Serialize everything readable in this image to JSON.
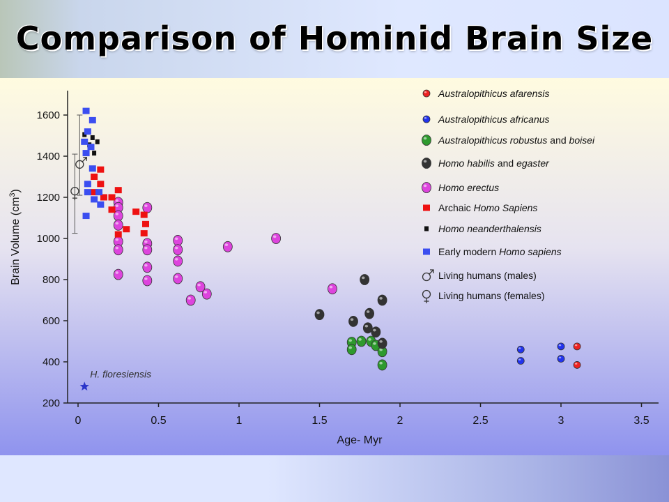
{
  "slide": {
    "title": "Comparison of Hominid Brain Size",
    "slide_number": ""
  },
  "chart_data": {
    "type": "scatter",
    "title": "Comparison of Hominid Brain Size",
    "xlabel": "Age- Myr",
    "ylabel": "Brain Volume (cm3)",
    "ylabel_parts": {
      "main": "Brain Volume (cm",
      "sup": "3",
      "close": ")"
    },
    "xlim": [
      0,
      3.5
    ],
    "ylim": [
      200,
      1700
    ],
    "x_axis_reversed": false,
    "x_ticks": [
      {
        "value": 0,
        "label": "0"
      },
      {
        "value": 0.5,
        "label": "0.5"
      },
      {
        "value": 1,
        "label": "1"
      },
      {
        "value": 1.5,
        "label": "1.5"
      },
      {
        "value": 2,
        "label": "2"
      },
      {
        "value": 2.5,
        "label": "2.5"
      },
      {
        "value": 3,
        "label": "3"
      },
      {
        "value": 3.5,
        "label": "3.5"
      }
    ],
    "y_ticks": [
      {
        "value": 200,
        "label": "200"
      },
      {
        "value": 400,
        "label": "400"
      },
      {
        "value": 600,
        "label": "600"
      },
      {
        "value": 800,
        "label": "800"
      },
      {
        "value": 1000,
        "label": "1000"
      },
      {
        "value": 1200,
        "label": "1200"
      },
      {
        "value": 1400,
        "label": "1400"
      },
      {
        "value": 1600,
        "label": "1600"
      }
    ],
    "grid": false,
    "legend_position": "top-right",
    "series": [
      {
        "name": "Australopithicus afarensis",
        "legend_parts": [
          {
            "text": "Australopithicus afarensis",
            "italic": true
          }
        ],
        "marker": "circle-small",
        "color": "#ee2222",
        "points": [
          [
            3.1,
            475
          ],
          [
            3.1,
            385
          ]
        ]
      },
      {
        "name": "Australopithicus africanus",
        "legend_parts": [
          {
            "text": "Australopithicus africanus",
            "italic": true
          }
        ],
        "marker": "circle-small",
        "color": "#2233ee",
        "points": [
          [
            2.75,
            460
          ],
          [
            2.75,
            405
          ],
          [
            3.0,
            475
          ],
          [
            3.0,
            415
          ]
        ]
      },
      {
        "name": "Australopithicus robustus and boisei",
        "legend_parts": [
          {
            "text": "Australopithicus robustus",
            "italic": true
          },
          {
            "text": " and ",
            "italic": false
          },
          {
            "text": "boisei",
            "italic": true
          }
        ],
        "marker": "circle",
        "color": "#2e9a2e",
        "points": [
          [
            1.7,
            495
          ],
          [
            1.7,
            460
          ],
          [
            1.76,
            500
          ],
          [
            1.82,
            500
          ],
          [
            1.85,
            480
          ],
          [
            1.89,
            450
          ],
          [
            1.89,
            385
          ]
        ]
      },
      {
        "name": "Homo habilis and egaster",
        "legend_parts": [
          {
            "text": "Homo habilis",
            "italic": true
          },
          {
            "text": " and ",
            "italic": false
          },
          {
            "text": "egaster",
            "italic": true
          }
        ],
        "marker": "circle",
        "color": "#333333",
        "points": [
          [
            1.5,
            630
          ],
          [
            1.71,
            597
          ],
          [
            1.78,
            800
          ],
          [
            1.8,
            565
          ],
          [
            1.81,
            635
          ],
          [
            1.85,
            545
          ],
          [
            1.89,
            700
          ],
          [
            1.89,
            490
          ]
        ]
      },
      {
        "name": "Homo erectus",
        "legend_parts": [
          {
            "text": "Homo erectus",
            "italic": true
          }
        ],
        "marker": "circle",
        "color": "#dd44dd",
        "points": [
          [
            0.25,
            1175
          ],
          [
            0.25,
            1150
          ],
          [
            0.25,
            1110
          ],
          [
            0.25,
            1065
          ],
          [
            0.25,
            985
          ],
          [
            0.25,
            945
          ],
          [
            0.25,
            825
          ],
          [
            0.43,
            1150
          ],
          [
            0.43,
            975
          ],
          [
            0.43,
            945
          ],
          [
            0.43,
            860
          ],
          [
            0.43,
            795
          ],
          [
            0.62,
            990
          ],
          [
            0.62,
            945
          ],
          [
            0.62,
            890
          ],
          [
            0.62,
            805
          ],
          [
            0.7,
            700
          ],
          [
            0.76,
            765
          ],
          [
            0.8,
            730
          ],
          [
            0.93,
            960
          ],
          [
            1.23,
            1000
          ],
          [
            1.58,
            755
          ]
        ]
      },
      {
        "name": "Archaic Homo Sapiens",
        "legend_parts": [
          {
            "text": "Archaic ",
            "italic": false
          },
          {
            "text": "Homo Sapiens",
            "italic": true
          }
        ],
        "marker": "square",
        "color": "#ee1111",
        "points": [
          [
            0.1,
            1300
          ],
          [
            0.1,
            1225
          ],
          [
            0.14,
            1335
          ],
          [
            0.14,
            1265
          ],
          [
            0.16,
            1200
          ],
          [
            0.21,
            1200
          ],
          [
            0.21,
            1140
          ],
          [
            0.25,
            1235
          ],
          [
            0.25,
            1020
          ],
          [
            0.3,
            1045
          ],
          [
            0.36,
            1130
          ],
          [
            0.41,
            1115
          ],
          [
            0.41,
            1025
          ],
          [
            0.42,
            1070
          ]
        ]
      },
      {
        "name": "Homo neanderthalensis",
        "legend_parts": [
          {
            "text": "Homo neanderthalensis",
            "italic": true
          }
        ],
        "marker": "square-small",
        "color": "#111111",
        "points": [
          [
            0.04,
            1505
          ],
          [
            0.07,
            1455
          ],
          [
            0.09,
            1490
          ],
          [
            0.1,
            1415
          ],
          [
            0.12,
            1470
          ]
        ]
      },
      {
        "name": "Early modern Homo sapiens",
        "legend_parts": [
          {
            "text": "Early modern ",
            "italic": false
          },
          {
            "text": "Homo sapiens",
            "italic": true
          }
        ],
        "marker": "square",
        "color": "#3b4ef0",
        "points": [
          [
            0.05,
            1620
          ],
          [
            0.09,
            1575
          ],
          [
            0.06,
            1520
          ],
          [
            0.04,
            1470
          ],
          [
            0.08,
            1445
          ],
          [
            0.05,
            1415
          ],
          [
            0.09,
            1340
          ],
          [
            0.06,
            1265
          ],
          [
            0.06,
            1225
          ],
          [
            0.13,
            1225
          ],
          [
            0.1,
            1190
          ],
          [
            0.14,
            1165
          ],
          [
            0.05,
            1110
          ]
        ]
      },
      {
        "name": "Living humans (males)",
        "legend_parts": [
          {
            "text": "Living humans (males)",
            "italic": false
          }
        ],
        "marker": "male",
        "range": {
          "x": 0.01,
          "center": 1360,
          "low": 1210,
          "high": 1600
        }
      },
      {
        "name": "Living humans (females)",
        "legend_parts": [
          {
            "text": "Living humans (females)",
            "italic": false
          }
        ],
        "marker": "female",
        "range": {
          "x": -0.02,
          "center": 1230,
          "low": 1025,
          "high": 1410
        }
      }
    ],
    "annotations": [
      {
        "text": "H. floresiensis",
        "x": 0.04,
        "y": 280,
        "marker": "star",
        "color": "#2a35c9"
      }
    ]
  }
}
